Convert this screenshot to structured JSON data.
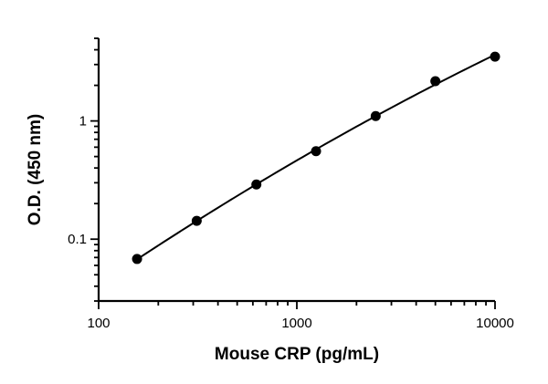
{
  "chart_data": {
    "type": "scatter",
    "title": "",
    "xlabel": "Mouse CRP (pg/mL)",
    "ylabel": "O.D. (450 nm)",
    "xscale": "log",
    "yscale": "log",
    "xlim": [
      100,
      10000
    ],
    "ylim": [
      0.03,
      5
    ],
    "x_tick_labels": [
      "100",
      "1000",
      "10000"
    ],
    "y_tick_labels": [
      "0.1",
      "1"
    ],
    "grid": false,
    "legend": "none",
    "series": [
      {
        "x": [
          156.25,
          312.5,
          625,
          1250,
          2500,
          5000,
          10000
        ],
        "y": [
          0.068,
          0.143,
          0.29,
          0.555,
          1.1,
          2.17,
          3.5
        ],
        "marker": "circle",
        "fit_line": true
      }
    ]
  }
}
